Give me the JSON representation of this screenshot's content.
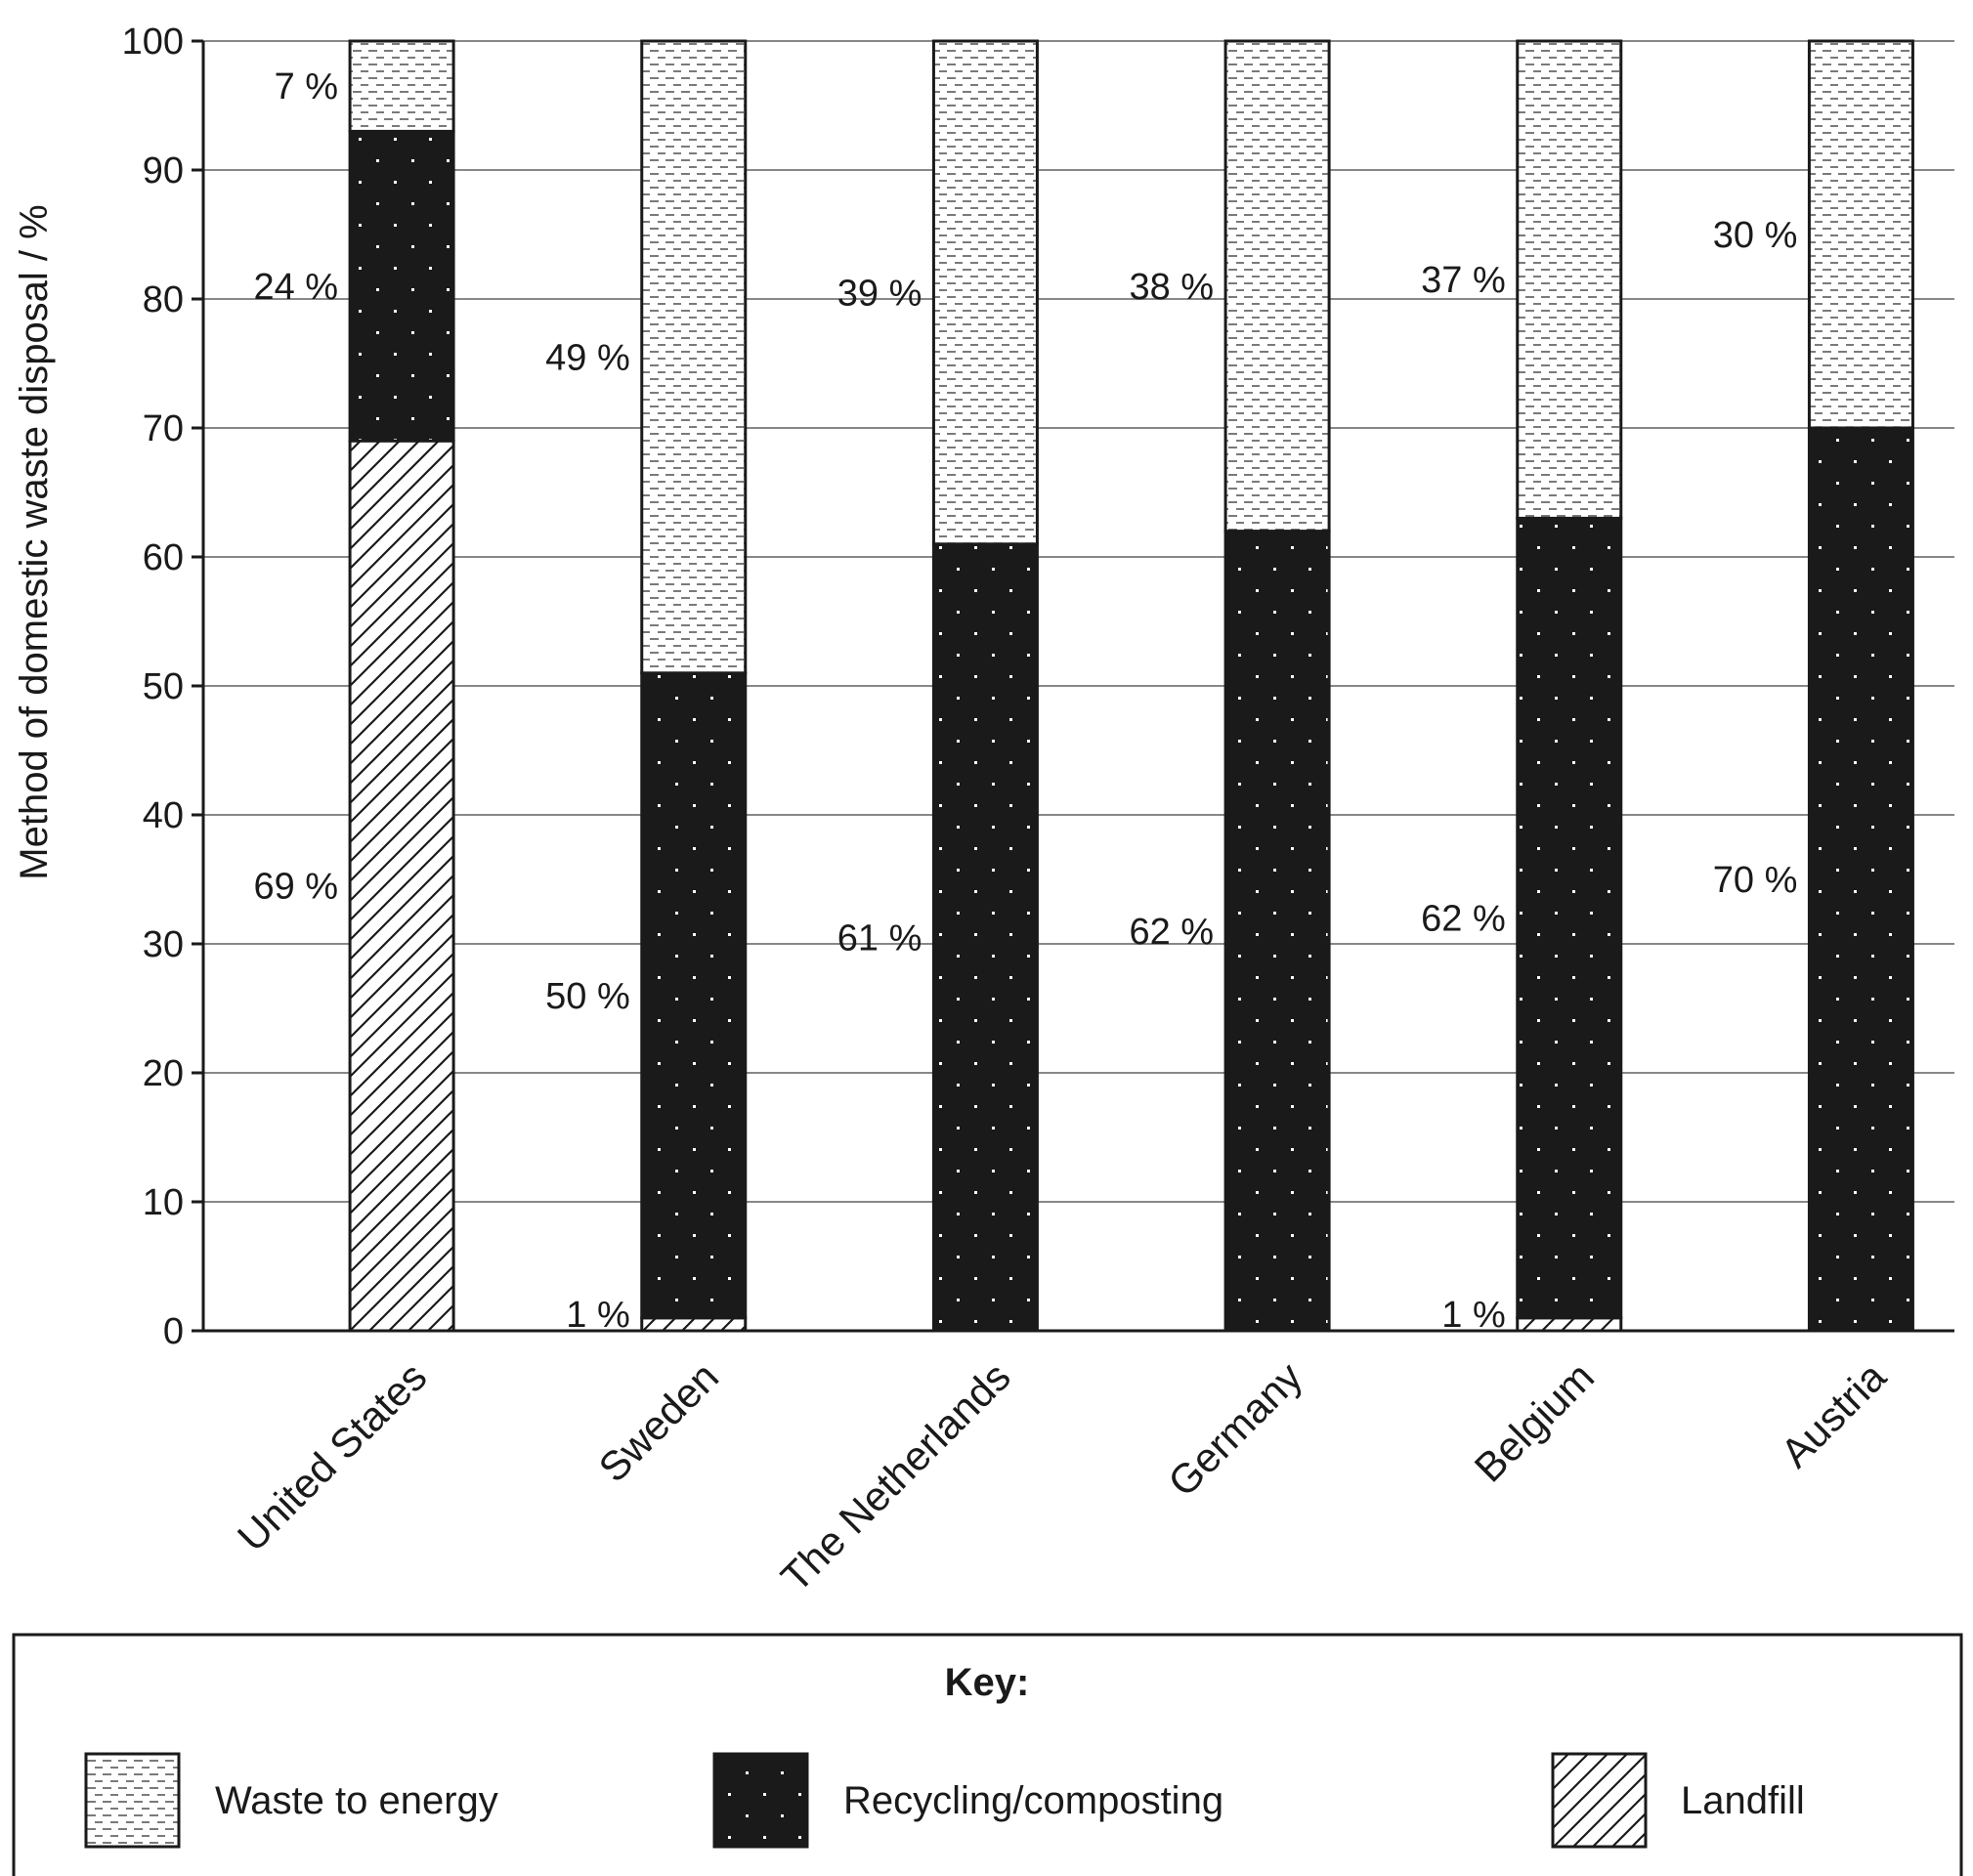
{
  "chart_data": {
    "type": "bar",
    "stacked": true,
    "ylabel": "Method of domestic waste disposal / %",
    "xlabel": "",
    "ylim": [
      0,
      100
    ],
    "yticks": [
      0,
      10,
      20,
      30,
      40,
      50,
      60,
      70,
      80,
      90,
      100
    ],
    "grid": true,
    "categories": [
      "United States",
      "Sweden",
      "The Netherlands",
      "Germany",
      "Belgium",
      "Austria"
    ],
    "series": [
      {
        "name": "Landfill",
        "pattern": "hatch",
        "values": [
          69,
          1,
          0,
          0,
          1,
          0
        ],
        "labels": [
          "69 %",
          "1 %",
          "",
          "",
          "1 %",
          ""
        ]
      },
      {
        "name": "Recycling/composting",
        "pattern": "dots",
        "values": [
          24,
          50,
          61,
          62,
          62,
          70
        ],
        "labels": [
          "24 %",
          "50 %",
          "61 %",
          "62 %",
          "62 %",
          "70 %"
        ]
      },
      {
        "name": "Waste to energy",
        "pattern": "dashes",
        "values": [
          7,
          49,
          39,
          38,
          37,
          30
        ],
        "labels": [
          "7 %",
          "49 %",
          "39 %",
          "38 %",
          "37 %",
          "30 %"
        ]
      }
    ],
    "legend": {
      "title": "Key:",
      "placement": "bottom",
      "order": [
        2,
        1,
        0
      ]
    },
    "colors": {
      "ink": "#1a1a1a",
      "grid": "#888888",
      "dark_fill": "#1a1a1a"
    }
  }
}
